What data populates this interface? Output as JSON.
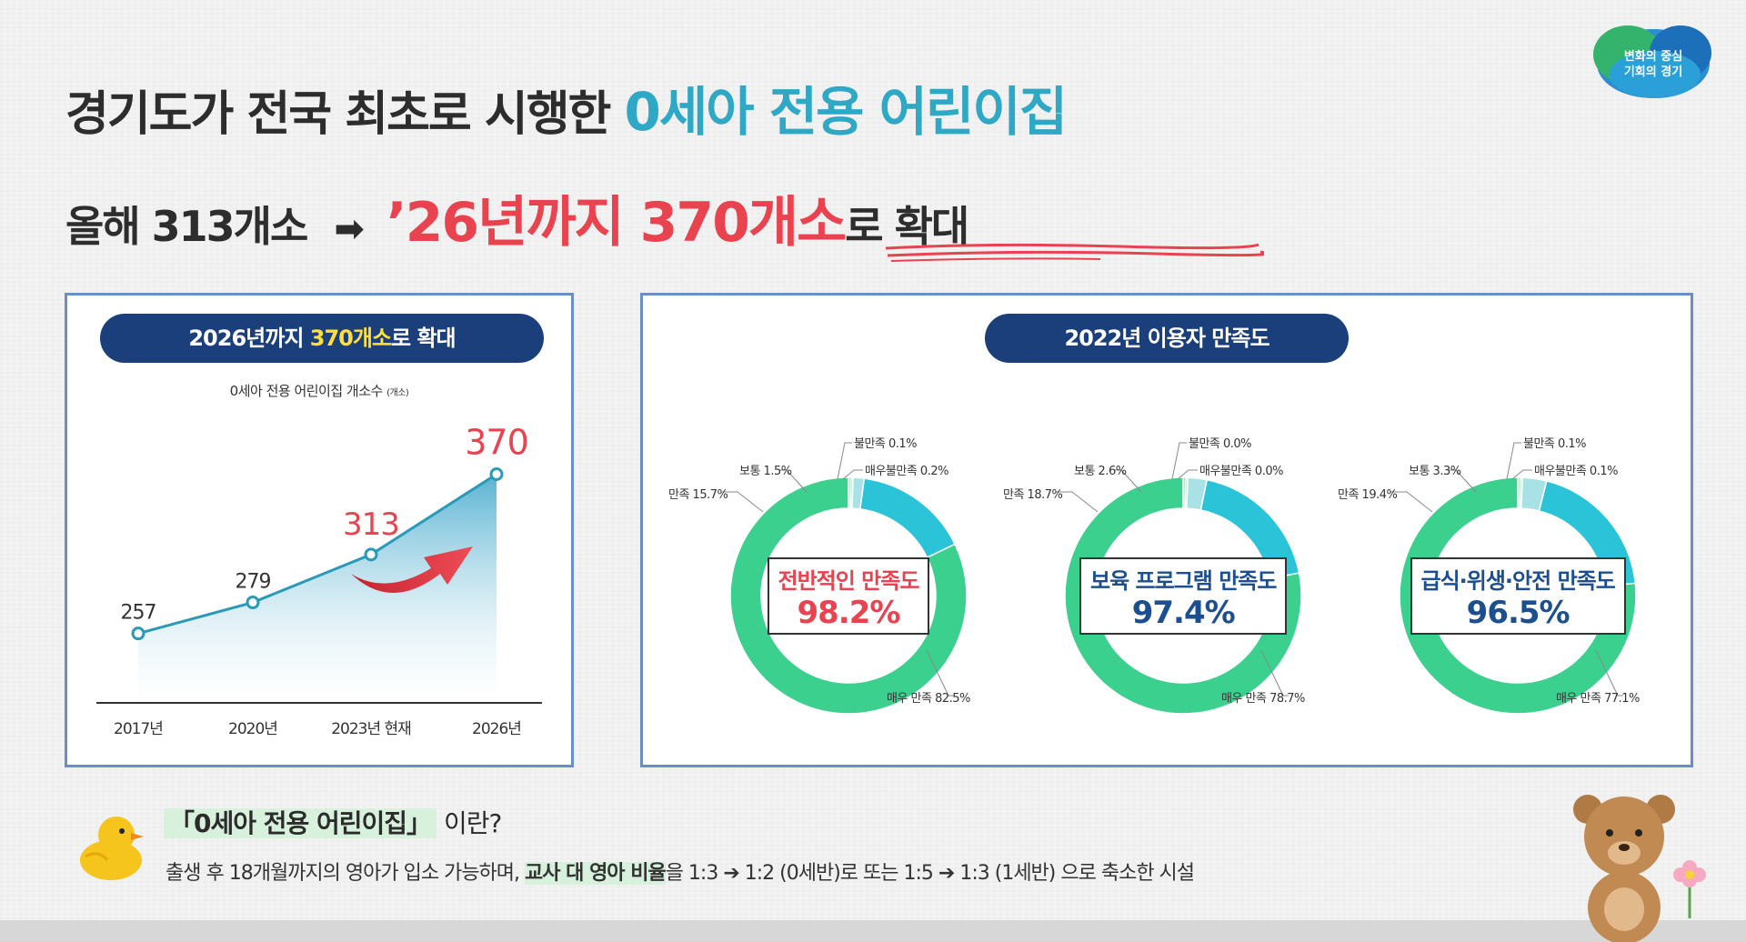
{
  "logo": {
    "line1": "변화의 중심",
    "line2": "기회의 경기"
  },
  "headline": {
    "prefix": "경기도가 전국 최초로 시행한 ",
    "highlight": "0세아 전용 어린이집"
  },
  "subline": {
    "current": "올해 313개소",
    "arrow": "➡",
    "target_prefix": "’26년까지 370개소",
    "target_suffix": "로 확대"
  },
  "left_panel": {
    "title_prefix": "2026년까지 ",
    "title_highlight": "370개소",
    "title_suffix": "로 확대",
    "subtitle": "0세아 전용 어린이집 개소수",
    "unit": "(개소)"
  },
  "right_panel": {
    "title": "2022년 이용자 만족도"
  },
  "chart_data": [
    {
      "type": "line",
      "title": "0세아 전용 어린이집 개소수",
      "ylabel": "(개소)",
      "categories": [
        "2017년",
        "2020년",
        "2023년 현재",
        "2026년"
      ],
      "values": [
        257,
        279,
        313,
        370
      ],
      "highlight_indices": [
        2,
        3
      ],
      "colors": {
        "line": "#2a9ab8",
        "area_top": "#3aa4c9",
        "highlight": "#e8434f",
        "label": "#333333"
      }
    },
    {
      "type": "pie",
      "title": "전반적인 만족도",
      "center_value": "98.2%",
      "center_color": "#e8434f",
      "series": [
        {
          "name": "매우 만족",
          "value": 82.5,
          "label": "매우 만족 82.5%"
        },
        {
          "name": "만족",
          "value": 15.7,
          "label": "만족 15.7%"
        },
        {
          "name": "보통",
          "value": 1.5,
          "label": "보통 1.5%"
        },
        {
          "name": "불만족",
          "value": 0.1,
          "label": "불만족 0.1%"
        },
        {
          "name": "매우불만족",
          "value": 0.2,
          "label": "매우불만족 0.2%"
        }
      ]
    },
    {
      "type": "pie",
      "title": "보육 프로그램 만족도",
      "center_value": "97.4%",
      "center_color": "#1b4f8f",
      "series": [
        {
          "name": "매우 만족",
          "value": 78.7,
          "label": "매우 만족 78.7%"
        },
        {
          "name": "만족",
          "value": 18.7,
          "label": "만족 18.7%"
        },
        {
          "name": "보통",
          "value": 2.6,
          "label": "보통 2.6%"
        },
        {
          "name": "불만족",
          "value": 0.0,
          "label": "불만족 0.0%"
        },
        {
          "name": "매우불만족",
          "value": 0.0,
          "label": "매우불만족 0.0%"
        }
      ]
    },
    {
      "type": "pie",
      "title": "급식·위생·안전 만족도",
      "center_value": "96.5%",
      "center_color": "#1b4f8f",
      "series": [
        {
          "name": "매우 만족",
          "value": 77.1,
          "label": "매우 만족 77.1%"
        },
        {
          "name": "만족",
          "value": 19.4,
          "label": "만족 19.4%"
        },
        {
          "name": "보통",
          "value": 3.3,
          "label": "보통 3.3%"
        },
        {
          "name": "불만족",
          "value": 0.1,
          "label": "불만족 0.1%"
        },
        {
          "name": "매우불만족",
          "value": 0.1,
          "label": "매우불만족 0.1%"
        }
      ]
    }
  ],
  "note": {
    "title_box": "「0세아 전용 어린이집」",
    "title_suffix": "이란?",
    "desc_prefix": "출생 후 18개월까지의 영아가 입소 가능하며, ",
    "desc_highlight": "교사 대 영아 비율",
    "desc_suffix": "을 1:3 ➔ 1:2 (0세반)로 또는 1:5 ➔ 1:3 (1세반) 으로 축소한 시설"
  }
}
